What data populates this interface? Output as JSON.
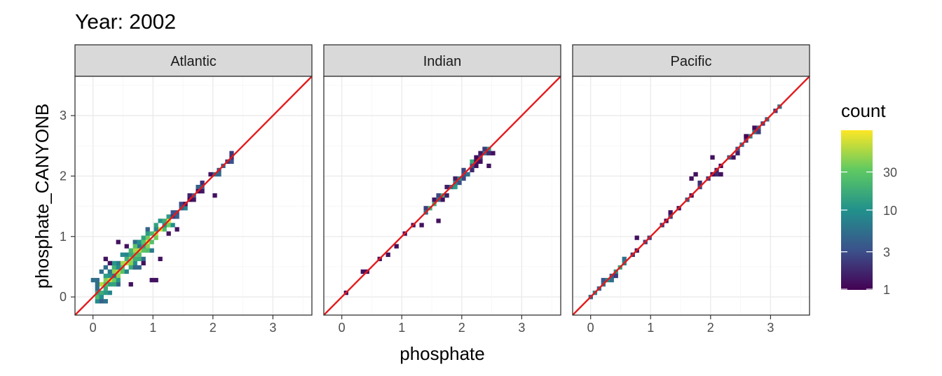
{
  "chart_data": {
    "type": "heatmap",
    "title": "Year: 2002",
    "xlabel": "phosphate",
    "ylabel": "phosphate_CANYONB",
    "xlim": [
      -0.3,
      3.65
    ],
    "ylim": [
      -0.3,
      3.65
    ],
    "x_ticks": [
      "0",
      "1",
      "2",
      "3"
    ],
    "y_ticks": [
      "0",
      "1",
      "2",
      "3"
    ],
    "grid": true,
    "reference_line": {
      "slope": 1,
      "intercept": 0,
      "color": "#e41a1c"
    },
    "legend": {
      "title": "count",
      "position": "right",
      "scale": "log",
      "range": [
        1,
        100
      ],
      "breaks": [
        "1",
        "3",
        "10",
        "30"
      ],
      "colors": [
        "#440154",
        "#3b528b",
        "#21918c",
        "#5ec962",
        "#fde725"
      ]
    },
    "panels": [
      {
        "name": "Atlantic",
        "clusters": [
          {
            "x0": 0.05,
            "x1": 0.95,
            "spread": 0.22,
            "n": 150,
            "cmin": 0.3,
            "cmax": 1.0
          },
          {
            "x0": 0.6,
            "x1": 1.3,
            "spread": 0.13,
            "n": 60,
            "cmin": 0.45,
            "cmax": 1.0
          },
          {
            "x0": 1.3,
            "x1": 2.35,
            "spread": 0.06,
            "n": 40,
            "cmin": 0.0,
            "cmax": 0.55
          }
        ],
        "points": [
          [
            0.45,
            0.9
          ],
          [
            0.3,
            0.55
          ],
          [
            1.1,
            1.15
          ],
          [
            1.25,
            1.05
          ],
          [
            0.95,
            0.3
          ],
          [
            1.05,
            0.3
          ],
          [
            0.6,
            0.2
          ],
          [
            2.05,
            1.7
          ],
          [
            1.15,
            0.65
          ],
          [
            1.4,
            1.15
          ],
          [
            0.55,
            0.85
          ],
          [
            0.85,
            0.55
          ],
          [
            0.2,
            0.62
          ]
        ]
      },
      {
        "name": "Indian",
        "clusters": [
          {
            "x0": 1.4,
            "x1": 2.5,
            "spread": 0.07,
            "n": 60,
            "cmin": 0.0,
            "cmax": 0.7
          }
        ],
        "points": [
          [
            0.1,
            0.1
          ],
          [
            0.35,
            0.4
          ],
          [
            0.45,
            0.45
          ],
          [
            0.65,
            0.62
          ],
          [
            0.75,
            0.72
          ],
          [
            0.9,
            0.87
          ],
          [
            1.05,
            1.05
          ],
          [
            1.2,
            1.2
          ],
          [
            1.35,
            1.18
          ],
          [
            1.45,
            1.45
          ],
          [
            1.6,
            1.25
          ],
          [
            2.55,
            2.35
          ],
          [
            2.45,
            2.2
          ]
        ]
      },
      {
        "name": "Pacific",
        "clusters": [
          {
            "x0": 0.0,
            "x1": 0.75,
            "spread": 0.03,
            "n": 35,
            "cmin": 0.0,
            "cmax": 0.7
          },
          {
            "x0": 0.8,
            "x1": 1.3,
            "spread": 0.03,
            "n": 10,
            "cmin": 0.0,
            "cmax": 0.35
          },
          {
            "x0": 1.6,
            "x1": 2.2,
            "spread": 0.05,
            "n": 16,
            "cmin": 0.0,
            "cmax": 0.3
          },
          {
            "x0": 2.3,
            "x1": 3.2,
            "spread": 0.04,
            "n": 30,
            "cmin": 0.0,
            "cmax": 0.45
          }
        ],
        "points": [
          [
            0.78,
            1.0
          ],
          [
            1.65,
            1.98
          ],
          [
            1.75,
            2.05
          ],
          [
            2.15,
            2.05
          ],
          [
            1.3,
            1.4
          ],
          [
            2.05,
            2.3
          ],
          [
            1.5,
            1.5
          ]
        ]
      }
    ]
  }
}
